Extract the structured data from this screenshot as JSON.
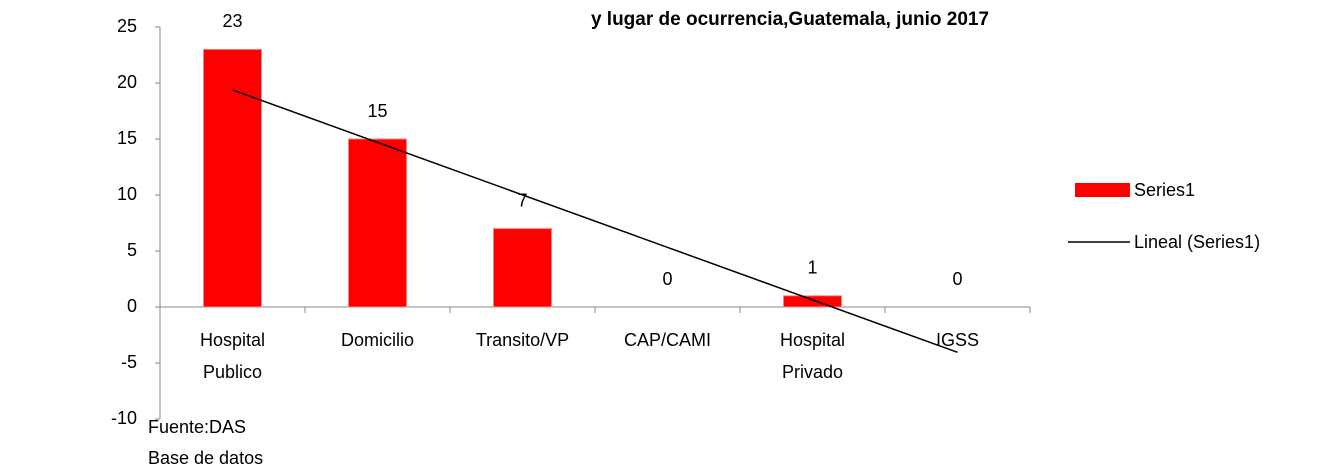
{
  "chart_data": {
    "type": "bar",
    "title": "y lugar de ocurrencia,Guatemala, junio 2017",
    "categories": [
      "Hospital Publico",
      "Domicilio",
      "Transito/VP",
      "CAP/CAMI",
      "Hospital Privado",
      "IGSS"
    ],
    "series": [
      {
        "name": "Series1",
        "color": "#ff0000",
        "values": [
          23,
          15,
          7,
          0,
          1,
          0
        ]
      }
    ],
    "trendline": {
      "label": "Lineal (Series1)",
      "kind": "linear",
      "color": "#000000"
    },
    "ylim": [
      -10,
      25
    ],
    "yticks": [
      -10,
      -5,
      0,
      5,
      10,
      15,
      20,
      25
    ],
    "grid": false,
    "legend": "right",
    "notes": [
      "Fuente:DAS",
      "Base de datos"
    ]
  }
}
